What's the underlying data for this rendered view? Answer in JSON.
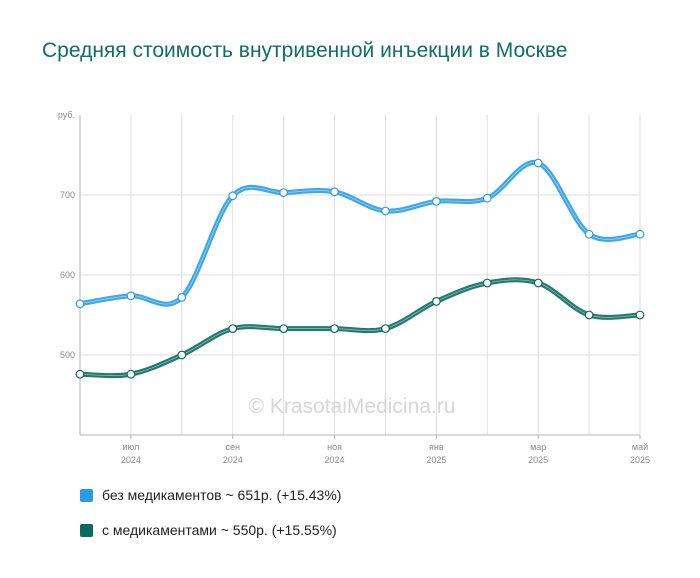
{
  "title": "Средняя стоимость внутривенной инъекции в Москве",
  "watermark": "© KrasotaiMedicina.ru",
  "chart_data": {
    "type": "line",
    "title": "Средняя стоимость внутривенной инъекции в Москве",
    "ylabel": "руб.",
    "xlabel": "",
    "ylim": [
      400,
      800
    ],
    "yticks": [
      500,
      600,
      700
    ],
    "grid": true,
    "legend_position": "bottom-left",
    "x": [
      "2024-06",
      "2024-07",
      "2024-08",
      "2024-09",
      "2024-10",
      "2024-11",
      "2024-12",
      "2025-01",
      "2025-02",
      "2025-03",
      "2025-04",
      "2025-05"
    ],
    "xtick_labels": [
      {
        "index": 1,
        "month": "июл",
        "year": "2024"
      },
      {
        "index": 3,
        "month": "сен",
        "year": "2024"
      },
      {
        "index": 5,
        "month": "ноя",
        "year": "2024"
      },
      {
        "index": 7,
        "month": "янв",
        "year": "2025"
      },
      {
        "index": 9,
        "month": "мар",
        "year": "2025"
      },
      {
        "index": 11,
        "month": "май",
        "year": "2025"
      }
    ],
    "series": [
      {
        "name": "без медикаментов",
        "color": "#2a9de0",
        "values": [
          564,
          574,
          572,
          699,
          703,
          704,
          680,
          692,
          696,
          740,
          651,
          651
        ]
      },
      {
        "name": "с медикаментами",
        "color": "#0c6b60",
        "values": [
          476,
          476,
          500,
          533,
          533,
          533,
          533,
          567,
          590,
          590,
          550,
          550
        ]
      }
    ]
  },
  "legend": [
    {
      "label": "без медикаментов ~ 651р. (+15.43%)",
      "color": "#2a9de0"
    },
    {
      "label": "с медикаментами ~ 550р. (+15.55%)",
      "color": "#0c6b60"
    }
  ]
}
